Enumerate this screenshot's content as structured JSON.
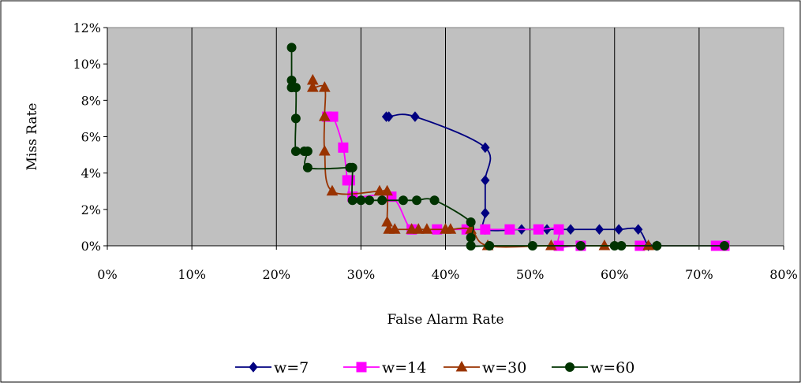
{
  "chart_data": {
    "type": "line",
    "title": "",
    "xlabel": "False Alarm Rate",
    "ylabel": "Miss Rate",
    "xlim": [
      0,
      0.8
    ],
    "ylim": [
      0,
      0.12
    ],
    "x_ticks": [
      0,
      0.1,
      0.2,
      0.3,
      0.4,
      0.5,
      0.6,
      0.7,
      0.8
    ],
    "y_ticks": [
      0,
      0.02,
      0.04,
      0.06,
      0.08,
      0.1,
      0.12
    ],
    "x_tick_labels": [
      "0%",
      "10%",
      "20%",
      "30%",
      "40%",
      "50%",
      "60%",
      "70%",
      "80%"
    ],
    "y_tick_labels": [
      "0%",
      "2%",
      "4%",
      "6%",
      "8%",
      "10%",
      "12%"
    ],
    "grid": "vertical",
    "legend_position": "bottom",
    "plot_background": "#c0c0c0",
    "smoothed": true,
    "series": [
      {
        "name": "w=7",
        "color": "#000080",
        "marker": "diamond",
        "points": [
          [
            0.33,
            0.071
          ],
          [
            0.333,
            0.071
          ],
          [
            0.364,
            0.071
          ],
          [
            0.447,
            0.054
          ],
          [
            0.447,
            0.036
          ],
          [
            0.447,
            0.018
          ],
          [
            0.447,
            0.009
          ],
          [
            0.49,
            0.009
          ],
          [
            0.52,
            0.009
          ],
          [
            0.548,
            0.009
          ],
          [
            0.582,
            0.009
          ],
          [
            0.605,
            0.009
          ],
          [
            0.628,
            0.009
          ],
          [
            0.64,
            0.0
          ],
          [
            0.65,
            0.0
          ]
        ]
      },
      {
        "name": "w=14",
        "color": "#ff00ff",
        "marker": "square",
        "points": [
          [
            0.26,
            0.071
          ],
          [
            0.267,
            0.071
          ],
          [
            0.279,
            0.054
          ],
          [
            0.284,
            0.036
          ],
          [
            0.287,
            0.036
          ],
          [
            0.29,
            0.027
          ],
          [
            0.336,
            0.027
          ],
          [
            0.36,
            0.009
          ],
          [
            0.39,
            0.009
          ],
          [
            0.425,
            0.009
          ],
          [
            0.447,
            0.009
          ],
          [
            0.476,
            0.009
          ],
          [
            0.51,
            0.009
          ],
          [
            0.534,
            0.009
          ],
          [
            0.534,
            0.0
          ],
          [
            0.56,
            0.0
          ],
          [
            0.63,
            0.0
          ],
          [
            0.72,
            0.0
          ],
          [
            0.73,
            0.0
          ]
        ]
      },
      {
        "name": "w=30",
        "color": "#993300",
        "marker": "triangle",
        "points": [
          [
            0.243,
            0.091
          ],
          [
            0.243,
            0.087
          ],
          [
            0.257,
            0.087
          ],
          [
            0.257,
            0.071
          ],
          [
            0.257,
            0.052
          ],
          [
            0.266,
            0.03
          ],
          [
            0.322,
            0.03
          ],
          [
            0.331,
            0.03
          ],
          [
            0.331,
            0.013
          ],
          [
            0.333,
            0.009
          ],
          [
            0.34,
            0.009
          ],
          [
            0.36,
            0.009
          ],
          [
            0.368,
            0.009
          ],
          [
            0.378,
            0.009
          ],
          [
            0.4,
            0.009
          ],
          [
            0.406,
            0.009
          ],
          [
            0.43,
            0.009
          ],
          [
            0.45,
            0.0
          ],
          [
            0.525,
            0.0
          ],
          [
            0.588,
            0.0
          ],
          [
            0.64,
            0.0
          ]
        ]
      },
      {
        "name": "w=60",
        "color": "#003300",
        "marker": "circle",
        "points": [
          [
            0.218,
            0.109
          ],
          [
            0.218,
            0.091
          ],
          [
            0.218,
            0.087
          ],
          [
            0.223,
            0.087
          ],
          [
            0.223,
            0.07
          ],
          [
            0.223,
            0.052
          ],
          [
            0.233,
            0.052
          ],
          [
            0.237,
            0.052
          ],
          [
            0.237,
            0.043
          ],
          [
            0.287,
            0.043
          ],
          [
            0.29,
            0.043
          ],
          [
            0.29,
            0.025
          ],
          [
            0.3,
            0.025
          ],
          [
            0.31,
            0.025
          ],
          [
            0.325,
            0.025
          ],
          [
            0.35,
            0.025
          ],
          [
            0.366,
            0.025
          ],
          [
            0.387,
            0.025
          ],
          [
            0.43,
            0.013
          ],
          [
            0.43,
            0.0045
          ],
          [
            0.43,
            0.0
          ],
          [
            0.452,
            0.0
          ],
          [
            0.503,
            0.0
          ],
          [
            0.56,
            0.0
          ],
          [
            0.6,
            0.0
          ],
          [
            0.608,
            0.0
          ],
          [
            0.65,
            0.0
          ],
          [
            0.73,
            0.0
          ]
        ]
      }
    ]
  }
}
